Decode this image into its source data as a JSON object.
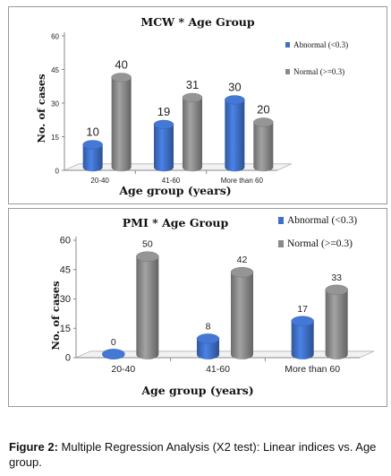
{
  "colors": {
    "abnormal": "#3f6fc6",
    "normal": "#8a8a8a"
  },
  "chart_data": [
    {
      "type": "bar",
      "title": "MCW * Age Group",
      "xlabel": "Age group (years)",
      "ylabel": "No. of cases",
      "categories": [
        "20-40",
        "41-60",
        "More than 60"
      ],
      "yticks": [
        "0",
        "15",
        "30",
        "45",
        "60"
      ],
      "ylim": [
        0,
        60
      ],
      "series": [
        {
          "name": "Abnormal (<0.3)",
          "values": [
            10,
            19,
            30
          ],
          "labels": [
            "10",
            "19",
            "30"
          ]
        },
        {
          "name": "Normal (>=0.3)",
          "values": [
            40,
            31,
            20
          ],
          "labels": [
            "40",
            "31",
            "20"
          ]
        }
      ],
      "legend": "right"
    },
    {
      "type": "bar",
      "title": "PMI * Age Group",
      "xlabel": "Age group (years)",
      "ylabel": "No. of cases",
      "categories": [
        "20-40",
        "41-60",
        "More than 60"
      ],
      "yticks": [
        "0",
        "15",
        "30",
        "45",
        "60"
      ],
      "ylim": [
        0,
        60
      ],
      "series": [
        {
          "name": "Abnormal (<0.3)",
          "values": [
            0,
            8,
            17
          ],
          "labels": [
            "0",
            "8",
            "17"
          ]
        },
        {
          "name": "Normal (>=0.3)",
          "values": [
            50,
            42,
            33
          ],
          "labels": [
            "50",
            "42",
            "33"
          ]
        }
      ],
      "legend": "top-right"
    }
  ],
  "caption": {
    "label": "Figure 2:",
    "text": " Multiple Regression Analysis (X2 test): Linear indices vs. Age group."
  }
}
